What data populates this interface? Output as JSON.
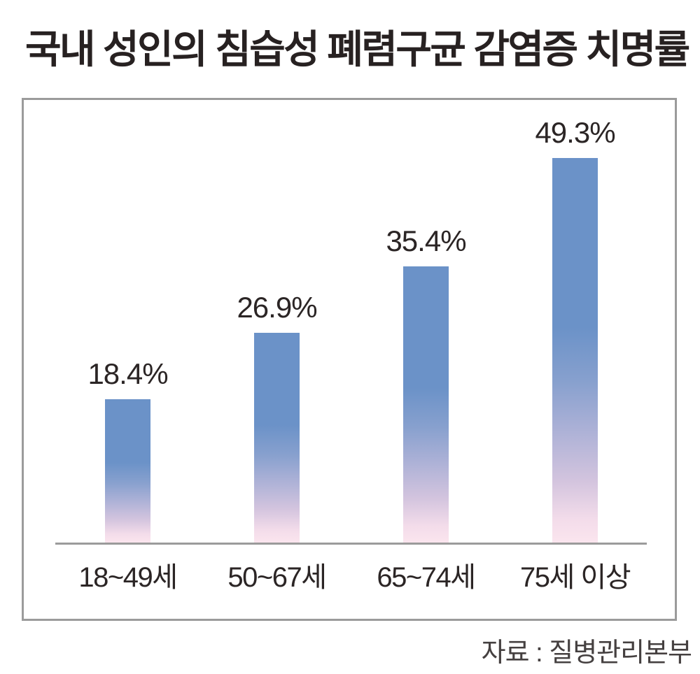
{
  "page": {
    "title": "국내 성인의 침습성 폐렴구균 감염증 치명률",
    "source": "자료 : 질병관리본부"
  },
  "chart_data": {
    "type": "bar",
    "title": "국내 성인의 침습성 폐렴구균 감염증 치명률",
    "categories": [
      "18~49세",
      "50~67세",
      "65~74세",
      "75세 이상"
    ],
    "values": [
      18.4,
      26.9,
      35.4,
      49.3
    ],
    "value_labels": [
      "18.4%",
      "26.9%",
      "35.4%",
      "49.3%"
    ],
    "unit": "%",
    "xlabel": "",
    "ylabel": "",
    "ylim": [
      0,
      55
    ],
    "grid": false,
    "legend_position": "none",
    "source": "자료 : 질병관리본부",
    "colors": {
      "bar_gradient_top": "#6b92c8",
      "bar_gradient_middle": "#aab0d6",
      "bar_gradient_bottom": "#fbe5ee",
      "axis_line": "#9b9b9b",
      "box_border": "#9b9b9b",
      "title_text": "#272121",
      "label_text": "#2b2525",
      "source_text": "#454040",
      "background": "#ffffff"
    }
  }
}
